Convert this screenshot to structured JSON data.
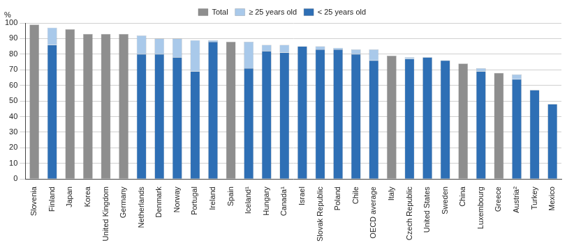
{
  "chart_data": {
    "type": "bar",
    "stacked": true,
    "legend": "top",
    "grid": true,
    "y_label": "%",
    "categories": [
      "Slovenia",
      "Finland",
      "Japan",
      "Korea",
      "United Kingdom",
      "Germany",
      "Netherlands",
      "Denmark",
      "Norway",
      "Portugal",
      "Ireland",
      "Spain",
      "Iceland¹",
      "Hungary",
      "Canada¹",
      "Israel",
      "Slovak Republic",
      "Poland",
      "Chile",
      "OECD average",
      "Italy",
      "Czech Republic",
      "United States",
      "Sweden",
      "China",
      "Luxembourg",
      "Greece",
      "Austria²",
      "Turkey",
      "Mexico"
    ],
    "series": [
      {
        "name": "< 25 years old",
        "color": "#2e6fb5",
        "values": [
          null,
          86,
          null,
          null,
          null,
          null,
          80,
          80,
          78,
          69,
          88,
          null,
          71,
          82,
          81,
          85,
          83,
          83,
          80,
          76,
          null,
          77,
          78,
          76,
          null,
          69,
          null,
          64,
          57,
          48
        ]
      },
      {
        "name": "≥ 25 years old",
        "color": "#a9c9ea",
        "values": [
          null,
          11,
          null,
          null,
          null,
          null,
          12,
          10,
          12,
          20,
          1,
          null,
          17,
          4,
          5,
          null,
          2,
          1,
          3,
          7,
          null,
          1,
          null,
          null,
          null,
          2,
          null,
          3,
          null,
          null
        ]
      },
      {
        "name": "Total",
        "color": "#8e8e8e",
        "values": [
          99,
          null,
          96,
          93,
          93,
          93,
          null,
          null,
          null,
          null,
          null,
          88,
          null,
          null,
          null,
          null,
          null,
          null,
          null,
          null,
          79,
          null,
          null,
          null,
          74,
          null,
          68,
          null,
          null,
          null
        ]
      }
    ],
    "ylim": [
      0,
      100
    ],
    "yticks": [
      0,
      10,
      20,
      30,
      40,
      50,
      60,
      70,
      80,
      90,
      100
    ]
  }
}
